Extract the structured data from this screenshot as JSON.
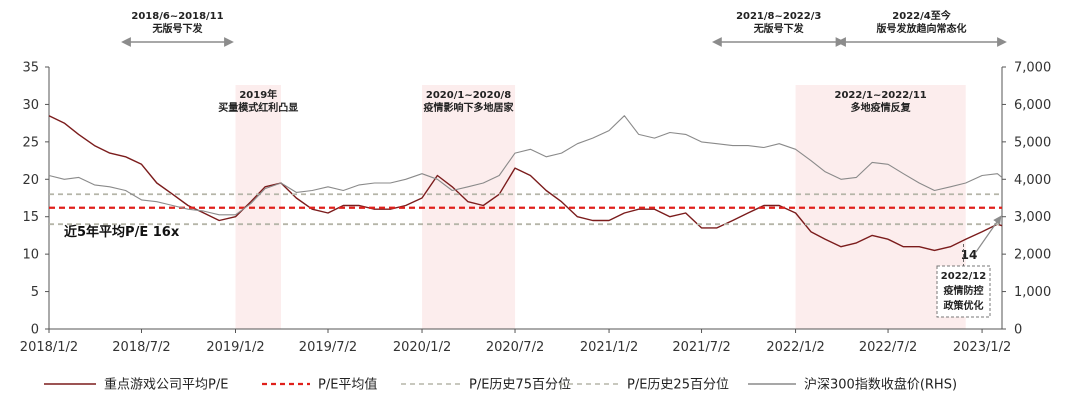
{
  "chart_data": {
    "type": "line",
    "x_ticks": [
      "2018/1/2",
      "2018/7/2",
      "2019/1/2",
      "2019/7/2",
      "2020/1/2",
      "2020/7/2",
      "2021/1/2",
      "2021/7/2",
      "2022/1/2",
      "2022/7/2",
      "2023/1/2"
    ],
    "x_range": [
      "2018/1/2",
      "2023/2/10"
    ],
    "ylim": [
      0,
      35
    ],
    "y_ticks": [
      0,
      5,
      10,
      15,
      20,
      25,
      30,
      35
    ],
    "y2lim": [
      0,
      7000
    ],
    "y2_ticks": [
      "0",
      "1,000",
      "2,000",
      "3,000",
      "4,000",
      "5,000",
      "6,000",
      "7,000"
    ],
    "series": [
      {
        "name": "重点游戏公司平均P/E",
        "axis": "left",
        "color": "#7b1c1c",
        "points": [
          [
            "2018/1/2",
            28.5
          ],
          [
            "2018/2/1",
            27.5
          ],
          [
            "2018/3/1",
            26
          ],
          [
            "2018/4/1",
            24.5
          ],
          [
            "2018/5/1",
            23.5
          ],
          [
            "2018/6/1",
            23
          ],
          [
            "2018/7/2",
            22
          ],
          [
            "2018/8/1",
            19.5
          ],
          [
            "2018/9/1",
            18
          ],
          [
            "2018/10/1",
            16.5
          ],
          [
            "2018/11/1",
            15.5
          ],
          [
            "2018/12/1",
            14.5
          ],
          [
            "2019/1/2",
            15
          ],
          [
            "2019/2/1",
            17
          ],
          [
            "2019/3/1",
            19
          ],
          [
            "2019/4/1",
            19.5
          ],
          [
            "2019/5/1",
            17.5
          ],
          [
            "2019/6/1",
            16
          ],
          [
            "2019/7/2",
            15.5
          ],
          [
            "2019/8/1",
            16.5
          ],
          [
            "2019/9/1",
            16.5
          ],
          [
            "2019/10/1",
            16
          ],
          [
            "2019/11/1",
            16
          ],
          [
            "2019/12/1",
            16.5
          ],
          [
            "2020/1/2",
            17.5
          ],
          [
            "2020/2/1",
            20.5
          ],
          [
            "2020/3/1",
            19
          ],
          [
            "2020/4/1",
            17
          ],
          [
            "2020/5/1",
            16.5
          ],
          [
            "2020/6/1",
            18
          ],
          [
            "2020/7/2",
            21.5
          ],
          [
            "2020/8/1",
            20.5
          ],
          [
            "2020/9/1",
            18.5
          ],
          [
            "2020/10/1",
            17
          ],
          [
            "2020/11/1",
            15
          ],
          [
            "2020/12/1",
            14.5
          ],
          [
            "2021/1/2",
            14.5
          ],
          [
            "2021/2/1",
            15.5
          ],
          [
            "2021/3/1",
            16
          ],
          [
            "2021/4/1",
            16
          ],
          [
            "2021/5/1",
            15
          ],
          [
            "2021/6/1",
            15.5
          ],
          [
            "2021/7/2",
            13.5
          ],
          [
            "2021/8/1",
            13.5
          ],
          [
            "2021/9/1",
            14.5
          ],
          [
            "2021/10/1",
            15.5
          ],
          [
            "2021/11/1",
            16.5
          ],
          [
            "2021/12/1",
            16.5
          ],
          [
            "2022/1/2",
            15.5
          ],
          [
            "2022/2/1",
            13
          ],
          [
            "2022/3/1",
            12
          ],
          [
            "2022/4/1",
            11
          ],
          [
            "2022/5/1",
            11.5
          ],
          [
            "2022/6/1",
            12.5
          ],
          [
            "2022/7/2",
            12
          ],
          [
            "2022/8/1",
            11
          ],
          [
            "2022/9/1",
            11
          ],
          [
            "2022/10/1",
            10.5
          ],
          [
            "2022/11/1",
            11
          ],
          [
            "2022/12/1",
            12
          ],
          [
            "2023/1/2",
            13
          ],
          [
            "2023/2/1",
            14
          ],
          [
            "2023/2/10",
            13.8
          ]
        ]
      },
      {
        "name": "P/E平均值",
        "axis": "left",
        "color": "#e0201b",
        "constant": 16.2
      },
      {
        "name": "P/E历史75百分位",
        "axis": "left",
        "color": "#b5b5a8",
        "constant": 18
      },
      {
        "name": "P/E历史25百分位",
        "axis": "left",
        "color": "#b5b5a8",
        "constant": 14
      },
      {
        "name": "沪深300指数收盘价(RHS)",
        "axis": "right",
        "color": "#8a8a8a",
        "points": [
          [
            "2018/1/2",
            4100
          ],
          [
            "2018/2/1",
            4000
          ],
          [
            "2018/3/1",
            4050
          ],
          [
            "2018/4/1",
            3850
          ],
          [
            "2018/5/1",
            3800
          ],
          [
            "2018/6/1",
            3700
          ],
          [
            "2018/7/2",
            3450
          ],
          [
            "2018/8/1",
            3400
          ],
          [
            "2018/9/1",
            3300
          ],
          [
            "2018/10/1",
            3200
          ],
          [
            "2018/11/1",
            3150
          ],
          [
            "2018/12/1",
            3050
          ],
          [
            "2019/1/2",
            3050
          ],
          [
            "2019/2/1",
            3350
          ],
          [
            "2019/3/1",
            3750
          ],
          [
            "2019/4/1",
            3900
          ],
          [
            "2019/5/1",
            3650
          ],
          [
            "2019/6/1",
            3700
          ],
          [
            "2019/7/2",
            3800
          ],
          [
            "2019/8/1",
            3700
          ],
          [
            "2019/9/1",
            3850
          ],
          [
            "2019/10/1",
            3900
          ],
          [
            "2019/11/1",
            3900
          ],
          [
            "2019/12/1",
            4000
          ],
          [
            "2020/1/2",
            4150
          ],
          [
            "2020/2/1",
            4000
          ],
          [
            "2020/3/1",
            3700
          ],
          [
            "2020/4/1",
            3800
          ],
          [
            "2020/5/1",
            3900
          ],
          [
            "2020/6/1",
            4100
          ],
          [
            "2020/7/2",
            4700
          ],
          [
            "2020/8/1",
            4800
          ],
          [
            "2020/9/1",
            4600
          ],
          [
            "2020/10/1",
            4700
          ],
          [
            "2020/11/1",
            4950
          ],
          [
            "2020/12/1",
            5100
          ],
          [
            "2021/1/2",
            5300
          ],
          [
            "2021/2/1",
            5700
          ],
          [
            "2021/3/1",
            5200
          ],
          [
            "2021/4/1",
            5100
          ],
          [
            "2021/5/1",
            5250
          ],
          [
            "2021/6/1",
            5200
          ],
          [
            "2021/7/2",
            5000
          ],
          [
            "2021/8/1",
            4950
          ],
          [
            "2021/9/1",
            4900
          ],
          [
            "2021/10/1",
            4900
          ],
          [
            "2021/11/1",
            4850
          ],
          [
            "2021/12/1",
            4950
          ],
          [
            "2022/1/2",
            4800
          ],
          [
            "2022/2/1",
            4500
          ],
          [
            "2022/3/1",
            4200
          ],
          [
            "2022/4/1",
            4000
          ],
          [
            "2022/5/1",
            4050
          ],
          [
            "2022/6/1",
            4450
          ],
          [
            "2022/7/2",
            4400
          ],
          [
            "2022/8/1",
            4150
          ],
          [
            "2022/9/1",
            3900
          ],
          [
            "2022/10/1",
            3700
          ],
          [
            "2022/11/1",
            3800
          ],
          [
            "2022/12/1",
            3900
          ],
          [
            "2023/1/2",
            4100
          ],
          [
            "2023/2/1",
            4150
          ],
          [
            "2023/2/10",
            4050
          ]
        ]
      }
    ],
    "shaded_periods": [
      {
        "start": "2019/1/2",
        "end": "2019/4/1",
        "label": [
          "2019年",
          "买量模式红利凸显"
        ]
      },
      {
        "start": "2020/1/2",
        "end": "2020/7/2",
        "label": [
          "2020/1~2020/8",
          "疫情影响下多地居家"
        ]
      },
      {
        "start": "2022/1/2",
        "end": "2022/12/1",
        "label": [
          "2022/1~2022/11",
          "多地疫情反复"
        ]
      }
    ],
    "top_arrows": [
      {
        "start": "2018/6/1",
        "end": "2018/11/30",
        "label": [
          "2018/6~2018/11",
          "无版号下发"
        ]
      },
      {
        "start": "2021/8/1",
        "end": "2022/3/31",
        "label": [
          "2021/8~2022/3",
          "无版号下发"
        ]
      },
      {
        "start": "2022/4/1",
        "end": "2023/2/10",
        "label": [
          "2022/4至今",
          "版号发放趋向常态化"
        ]
      }
    ],
    "annotations": {
      "mean_label": "近5年平均P/E 16x",
      "end_value": "14",
      "policy_box": [
        "2022/12",
        "疫情防控",
        "政策优化"
      ]
    },
    "legend_position": "bottom"
  }
}
